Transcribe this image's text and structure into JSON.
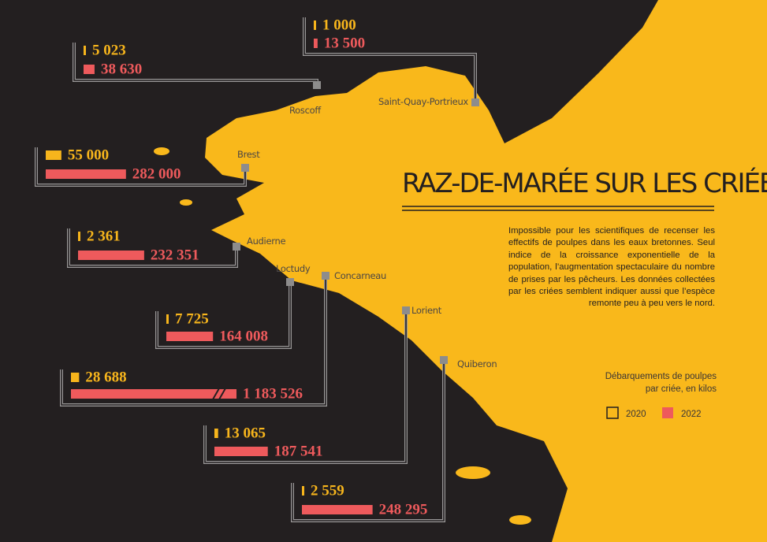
{
  "title": "RAZ-DE-MARÉE SUR LES CRIÉES",
  "description": "Impossible pour les scientifiques de recenser les effectifs de poulpes dans les eaux bretonnes. Seul indice de la croissance exponentielle de la population, l’augmentation spectaculaire du nombre de prises par les pêcheurs. Les données collectées par les criées semblent indiquer aussi que l’espèce remonte peu à peu vers le nord.",
  "legend": {
    "title": "Débarquements de poulpes par criée, en kilos",
    "series": [
      {
        "name": "2020",
        "color": "#f7b51c"
      },
      {
        "name": "2022",
        "color": "#ee5a5c"
      }
    ]
  },
  "ports": [
    {
      "name": "Roscoff",
      "values": [
        5023,
        38630
      ],
      "value_labels": [
        "5 023",
        "38 630"
      ]
    },
    {
      "name": "Saint-Quay-Portrieux",
      "values": [
        1000,
        13500
      ],
      "value_labels": [
        "1 000",
        "13 500"
      ]
    },
    {
      "name": "Brest",
      "values": [
        55000,
        282000
      ],
      "value_labels": [
        "55 000",
        "282 000"
      ]
    },
    {
      "name": "Audierne",
      "values": [
        2361,
        232351
      ],
      "value_labels": [
        "2 361",
        "232 351"
      ]
    },
    {
      "name": "Loctudy",
      "values": [
        7725,
        164008
      ],
      "value_labels": [
        "7 725",
        "164 008"
      ]
    },
    {
      "name": "Concarneau",
      "values": [
        28688,
        1183526
      ],
      "value_labels": [
        "28 688",
        "1 183 526"
      ]
    },
    {
      "name": "Lorient",
      "values": [
        13065,
        187541
      ],
      "value_labels": [
        "13 065",
        "187 541"
      ]
    },
    {
      "name": "Quiberon",
      "values": [
        2559,
        248295
      ],
      "value_labels": [
        "2 559",
        "248 295"
      ]
    }
  ]
}
